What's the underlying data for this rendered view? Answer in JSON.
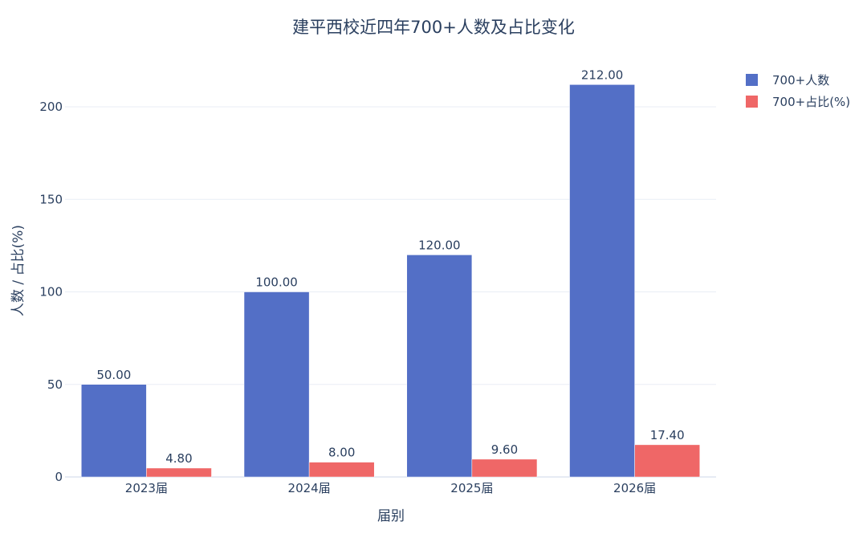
{
  "chart_data": {
    "type": "bar",
    "title": "建平西校近四年700+人数及占比变化",
    "xlabel": "届别",
    "ylabel": "人数 / 占比(%)",
    "categories": [
      "2023届",
      "2024届",
      "2025届",
      "2026届"
    ],
    "series": [
      {
        "name": "700+人数",
        "values": [
          50.0,
          100.0,
          120.0,
          212.0
        ],
        "labels": [
          "50.00",
          "100.00",
          "120.00",
          "212.00"
        ],
        "color": "#536fc6"
      },
      {
        "name": "700+占比(%)",
        "values": [
          4.8,
          8.0,
          9.6,
          17.4
        ],
        "labels": [
          "4.80",
          "8.00",
          "9.60",
          "17.40"
        ],
        "color": "#ef6767"
      }
    ],
    "yticks": [
      0,
      50,
      100,
      150,
      200
    ],
    "ylim": [
      0,
      223
    ],
    "grid": true,
    "legend_position": "top-right"
  }
}
